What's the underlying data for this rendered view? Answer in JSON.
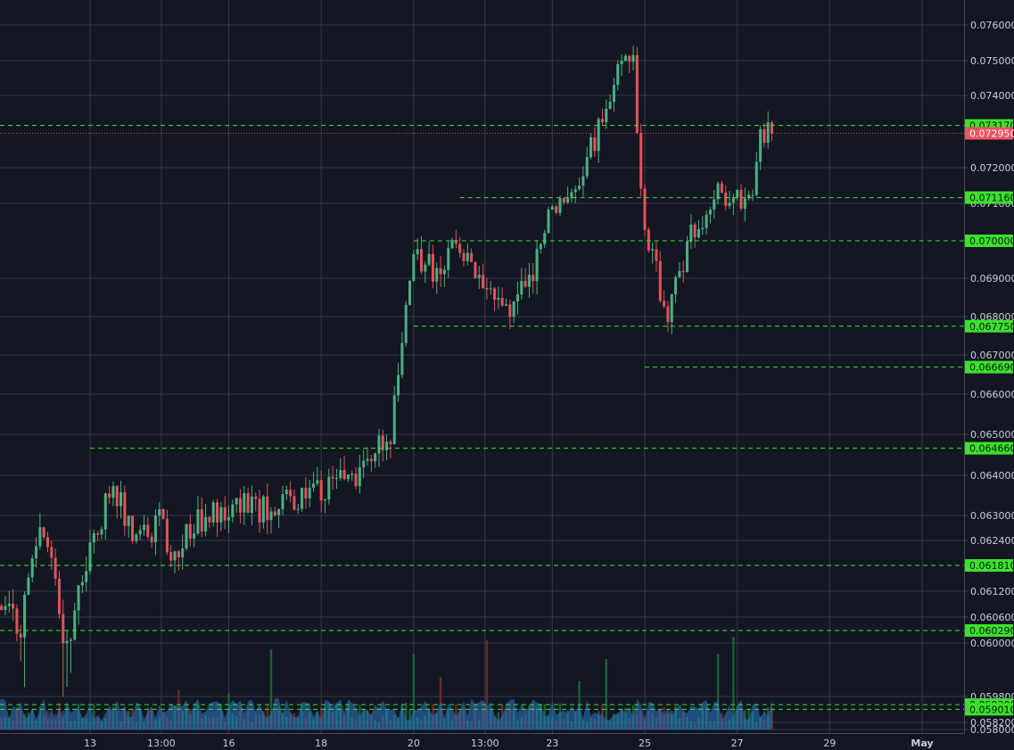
{
  "chart_data": {
    "type": "candlestick",
    "price_axis_ticks": [
      "0.076000",
      "0.075000",
      "0.074000",
      "0.072000",
      "0.071000",
      "0.069000",
      "0.068000",
      "0.067000",
      "0.066000",
      "0.065000",
      "0.064000",
      "0.063000",
      "0.062400",
      "0.061200",
      "0.060600",
      "0.060000",
      "0.059800",
      "0.058200",
      "0.058000"
    ],
    "time_axis_labels": [
      {
        "label": "13",
        "date": "Apr 13"
      },
      {
        "label": "13:00",
        "date": "Apr 14 13:00"
      },
      {
        "label": "16",
        "date": "Apr 16"
      },
      {
        "label": "18",
        "date": "Apr 18"
      },
      {
        "label": "20",
        "date": "Apr 20"
      },
      {
        "label": "13:00",
        "date": "Apr 21 13:00"
      },
      {
        "label": "23",
        "date": "Apr 23"
      },
      {
        "label": "25",
        "date": "Apr 25"
      },
      {
        "label": "27",
        "date": "Apr 27"
      },
      {
        "label": "29",
        "date": "Apr 29"
      },
      {
        "label": "May",
        "date": "May 1"
      }
    ],
    "level_lines": [
      {
        "price": 0.07317,
        "label": "0.073170",
        "kind": "horizontal"
      },
      {
        "price": 0.07116,
        "label": "0.071160",
        "kind": "ray",
        "from_date": "Apr 21"
      },
      {
        "price": 0.07,
        "label": "0.070000",
        "kind": "ray",
        "from_date": "Apr 20"
      },
      {
        "price": 0.06775,
        "label": "0.067750",
        "kind": "ray",
        "from_date": "Apr 20"
      },
      {
        "price": 0.06669,
        "label": "0.066690",
        "kind": "ray",
        "from_date": "Apr 25"
      },
      {
        "price": 0.06466,
        "label": "0.064660",
        "kind": "ray",
        "from_date": "Apr 13"
      },
      {
        "price": 0.06181,
        "label": "0.061810",
        "kind": "horizontal"
      },
      {
        "price": 0.06029,
        "label": "0.060290",
        "kind": "horizontal"
      },
      {
        "price": 0.0593,
        "label": "0.059300",
        "kind": "horizontal"
      },
      {
        "price": 0.05901,
        "label": "0.059010",
        "kind": "horizontal"
      }
    ],
    "current_price": {
      "price": 0.07295,
      "label": "0.072950"
    },
    "close_path": [
      {
        "date": "Apr 11 00:00",
        "close": 0.0608
      },
      {
        "date": "Apr 11 12:00",
        "close": 0.0605
      },
      {
        "date": "Apr 12 00:00",
        "close": 0.0628
      },
      {
        "date": "Apr 12 12:00",
        "close": 0.0598
      },
      {
        "date": "Apr 13 00:00",
        "close": 0.0622
      },
      {
        "date": "Apr 13 12:00",
        "close": 0.0638
      },
      {
        "date": "Apr 14 00:00",
        "close": 0.0624
      },
      {
        "date": "Apr 14 12:00",
        "close": 0.0628
      },
      {
        "date": "Apr 14 20:00",
        "close": 0.0619
      },
      {
        "date": "Apr 15 06:00",
        "close": 0.0628
      },
      {
        "date": "Apr 16 00:00",
        "close": 0.0632
      },
      {
        "date": "Apr 17 00:00",
        "close": 0.0632
      },
      {
        "date": "Apr 18 00:00",
        "close": 0.0636
      },
      {
        "date": "Apr 18 18:00",
        "close": 0.064
      },
      {
        "date": "Apr 19 12:00",
        "close": 0.065
      },
      {
        "date": "Apr 19 18:00",
        "close": 0.0672
      },
      {
        "date": "Apr 20 00:00",
        "close": 0.0696
      },
      {
        "date": "Apr 20 12:00",
        "close": 0.0692
      },
      {
        "date": "Apr 21 00:00",
        "close": 0.07
      },
      {
        "date": "Apr 21 12:00",
        "close": 0.069
      },
      {
        "date": "Apr 22 00:00",
        "close": 0.0682
      },
      {
        "date": "Apr 22 12:00",
        "close": 0.0688
      },
      {
        "date": "Apr 23 00:00",
        "close": 0.071
      },
      {
        "date": "Apr 23 12:00",
        "close": 0.0716
      },
      {
        "date": "Apr 24 00:00",
        "close": 0.073
      },
      {
        "date": "Apr 24 12:00",
        "close": 0.0752
      },
      {
        "date": "Apr 24 18:00",
        "close": 0.0748
      },
      {
        "date": "Apr 25 00:00",
        "close": 0.0702
      },
      {
        "date": "Apr 25 12:00",
        "close": 0.068
      },
      {
        "date": "Apr 26 00:00",
        "close": 0.0702
      },
      {
        "date": "Apr 26 12:00",
        "close": 0.0712
      },
      {
        "date": "Apr 27 00:00",
        "close": 0.0712
      },
      {
        "date": "Apr 27 06:00",
        "close": 0.071
      },
      {
        "date": "Apr 27 12:00",
        "close": 0.0728
      },
      {
        "date": "Apr 27 18:00",
        "close": 0.07295
      }
    ],
    "y_range": [
      0.058,
      0.0765
    ],
    "grid": true,
    "colors": {
      "background": "#131722",
      "grid": "#363a45",
      "up": "#4caf82",
      "down": "#e0545a",
      "level_line": "#3ce02e",
      "current_price": "#f23645",
      "volume_area": "#2a79c4"
    }
  }
}
